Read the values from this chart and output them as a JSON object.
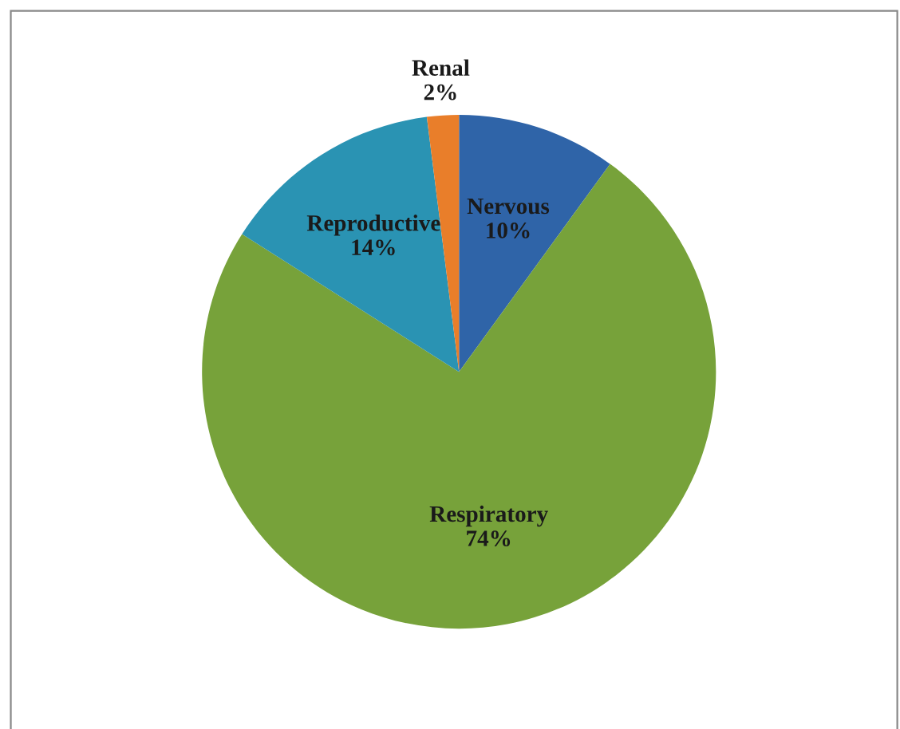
{
  "chart_data": {
    "type": "pie",
    "categories": [
      "Nervous",
      "Respiratory",
      "Reproductive",
      "Renal"
    ],
    "values": [
      10,
      74,
      14,
      2
    ],
    "colors": [
      "#2f64a8",
      "#77a23a",
      "#2a93b3",
      "#e97e2a"
    ],
    "value_labels": [
      "10%",
      "74%",
      "14%",
      "2%"
    ]
  }
}
